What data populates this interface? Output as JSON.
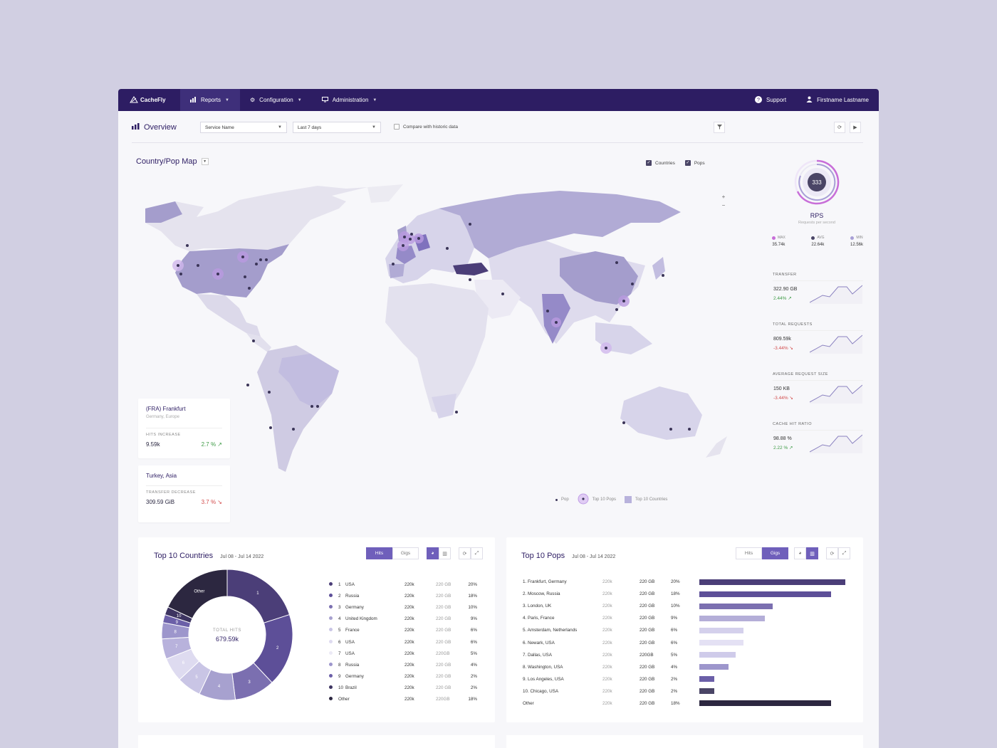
{
  "nav": {
    "logo": "CacheFly",
    "reports": "Reports",
    "configuration": "Configuration",
    "administration": "Administration",
    "support": "Support",
    "user": "Firstname Lastname"
  },
  "overview": {
    "title": "Overview",
    "service_select": "Service Name",
    "period_select": "Last 7 days",
    "compare_label": "Compare with historic data"
  },
  "map": {
    "title": "Country/Pop Map",
    "toggle_countries": "Countries",
    "toggle_pops": "Pops",
    "zoom_in": "+",
    "zoom_out": "−",
    "legend_pop": "Pop",
    "legend_top_pops": "Top 10 Pops",
    "legend_top_countries": "Top 10 Countries"
  },
  "cards": {
    "frankfurt": {
      "title": "(FRA) Frankfurt",
      "sub": "Germany, Europe",
      "label": "HITS INCREASE",
      "value": "9.59k",
      "change": "2.7 % ↗"
    },
    "turkey": {
      "title": "Turkey, Asia",
      "label": "TRANSFER DECREASE",
      "value": "309.59 GiB",
      "change": "3.7 % ↘"
    }
  },
  "rps": {
    "value": "333",
    "label": "RPS",
    "sub": "Requests per second",
    "max_label": "MAX",
    "max": "35.74k",
    "avg_label": "AVG",
    "avg": "22.64k",
    "min_label": "MIN",
    "min": "12.56k"
  },
  "metrics": [
    {
      "label": "TRANSFER",
      "value": "322.90 GB",
      "change": "2.44% ↗",
      "dir": "up"
    },
    {
      "label": "TOTAL REQUESTS",
      "value": "809.59k",
      "change": "-3.44% ↘",
      "dir": "down"
    },
    {
      "label": "AVERAGE REQUEST SIZE",
      "value": "150 KB",
      "change": "-3.44% ↘",
      "dir": "down"
    },
    {
      "label": "CACHE HIT RATIO",
      "value": "98.88 %",
      "change": "2.22 % ↗",
      "dir": "up"
    }
  ],
  "countries": {
    "title": "Top 10 Countries",
    "date": "Jul 08 - Jul 14 2022",
    "hits": "Hits",
    "gigs": "Gigs",
    "donut_label": "TOTAL HITS",
    "donut_value": "679.59k",
    "rows": [
      {
        "n": "1",
        "name": "USA",
        "hits": "220k",
        "gigs": "220 GB",
        "pct": "20%",
        "color": "#4b3e78"
      },
      {
        "n": "2",
        "name": "Russia",
        "hits": "220k",
        "gigs": "220 GB",
        "pct": "18%",
        "color": "#5d4f98"
      },
      {
        "n": "3",
        "name": "Germany",
        "hits": "220k",
        "gigs": "220 GB",
        "pct": "10%",
        "color": "#7b6fb0"
      },
      {
        "n": "4",
        "name": "United Kingdom",
        "hits": "220k",
        "gigs": "220 GB",
        "pct": "9%",
        "color": "#a7a1cf"
      },
      {
        "n": "5",
        "name": "France",
        "hits": "220k",
        "gigs": "220 GB",
        "pct": "6%",
        "color": "#c9c5e5"
      },
      {
        "n": "6",
        "name": "USA",
        "hits": "220k",
        "gigs": "220 GB",
        "pct": "6%",
        "color": "#dedbf0"
      },
      {
        "n": "7",
        "name": "USA",
        "hits": "220k",
        "gigs": "220GB",
        "pct": "5%",
        "color": "#eceaf6"
      },
      {
        "n": "8",
        "name": "Russia",
        "hits": "220k",
        "gigs": "220 GB",
        "pct": "4%",
        "color": "#9d96cc"
      },
      {
        "n": "9",
        "name": "Germany",
        "hits": "220k",
        "gigs": "220 GB",
        "pct": "2%",
        "color": "#6b5fa8"
      },
      {
        "n": "10",
        "name": "Brazil",
        "hits": "220k",
        "gigs": "220 GB",
        "pct": "2%",
        "color": "#3d3461"
      },
      {
        "n": "",
        "name": "Other",
        "hits": "220k",
        "gigs": "220GB",
        "pct": "18%",
        "color": "#2c2740"
      }
    ],
    "slices": [
      {
        "label": "1",
        "value": 20,
        "color": "#4b3e78"
      },
      {
        "label": "2",
        "value": 18,
        "color": "#5d4f98"
      },
      {
        "label": "3",
        "value": 10,
        "color": "#7b6fb0"
      },
      {
        "label": "4",
        "value": 9,
        "color": "#a7a1cf"
      },
      {
        "label": "5",
        "value": 6,
        "color": "#c9c5e5"
      },
      {
        "label": "6",
        "value": 6,
        "color": "#dedbf0"
      },
      {
        "label": "7",
        "value": 5,
        "color": "#b8b2dc"
      },
      {
        "label": "8",
        "value": 4,
        "color": "#9d96cc"
      },
      {
        "label": "9",
        "value": 2,
        "color": "#6b5fa8"
      },
      {
        "label": "10",
        "value": 2,
        "color": "#3d3461"
      },
      {
        "label": "Other",
        "value": 18,
        "color": "#2c2740"
      }
    ]
  },
  "pops": {
    "title": "Top 10 Pops",
    "date": "Jul 08 - Jul 14 2022",
    "hits": "Hits",
    "gigs": "Gigs",
    "rows": [
      {
        "name": "1. Frankfurt, Germany",
        "hits": "220k",
        "gigs": "220 GB",
        "pct": "20%",
        "share": 1.0,
        "color": "#4b3e78"
      },
      {
        "name": "2. Moscow, Russia",
        "hits": "220k",
        "gigs": "220 GB",
        "pct": "18%",
        "share": 0.9,
        "color": "#5d4f98"
      },
      {
        "name": "3. London, UK",
        "hits": "220k",
        "gigs": "220 GB",
        "pct": "10%",
        "share": 0.5,
        "color": "#7b6fb0"
      },
      {
        "name": "4. Paris, France",
        "hits": "220k",
        "gigs": "220 GB",
        "pct": "9%",
        "share": 0.45,
        "color": "#b4aed8"
      },
      {
        "name": "5. Amsterdam, Netherlands",
        "hits": "220k",
        "gigs": "220 GB",
        "pct": "6%",
        "share": 0.3,
        "color": "#d4d0ec"
      },
      {
        "name": "6. Newark, USA",
        "hits": "220k",
        "gigs": "220 GB",
        "pct": "6%",
        "share": 0.3,
        "color": "#e4e1f4"
      },
      {
        "name": "7. Dallas, USA",
        "hits": "220k",
        "gigs": "220GB",
        "pct": "5%",
        "share": 0.25,
        "color": "#cfcbea"
      },
      {
        "name": "8. Washington, USA",
        "hits": "220k",
        "gigs": "220 GB",
        "pct": "4%",
        "share": 0.2,
        "color": "#9d96cc"
      },
      {
        "name": "9. Los Angeles, USA",
        "hits": "220k",
        "gigs": "220 GB",
        "pct": "2%",
        "share": 0.1,
        "color": "#6b5fa8"
      },
      {
        "name": "10. Chicago, USA",
        "hits": "220k",
        "gigs": "220 GB",
        "pct": "2%",
        "share": 0.1,
        "color": "#4a4566"
      },
      {
        "name": "Other",
        "hits": "220k",
        "gigs": "220 GB",
        "pct": "18%",
        "share": 0.9,
        "color": "#2c2740"
      }
    ]
  }
}
